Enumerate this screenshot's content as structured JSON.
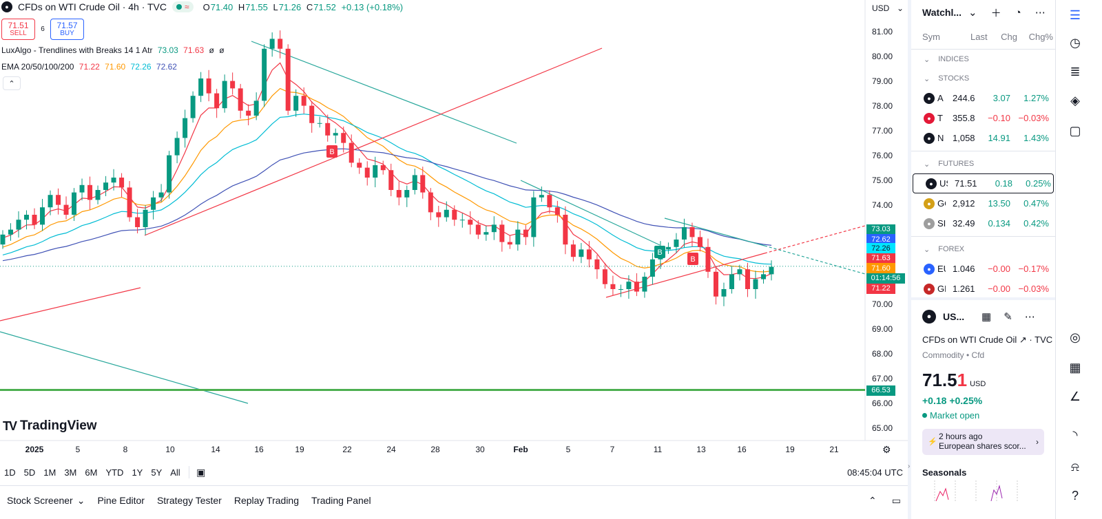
{
  "header": {
    "symbol_icon": "droplet-icon",
    "title": "CFDs on WTI Crude Oil · 4h · TVC",
    "status_wave": "≈",
    "ohlc": {
      "o_label": "O",
      "o": "71.40",
      "h_label": "H",
      "h": "71.55",
      "l_label": "L",
      "l": "71.26",
      "c_label": "C",
      "c": "71.52",
      "change": "+0.13 (+0.18%)"
    },
    "sell_price": "71.51",
    "sell_label": "SELL",
    "spread": "6",
    "buy_price": "71.57",
    "buy_label": "BUY"
  },
  "indicators": {
    "lux_name": "LuxAlgo - Trendlines with Breaks 14 1 Atr",
    "lux_v1": "73.03",
    "lux_v2": "71.63",
    "lux_v3": "ø",
    "lux_v4": "ø",
    "ema_name": "EMA 20/50/100/200",
    "ema_v1": "71.22",
    "ema_v2": "71.60",
    "ema_v3": "72.26",
    "ema_v4": "72.62",
    "collapse_icon": "chevron-up-icon"
  },
  "currency": "USD",
  "price_axis": [
    "81.00",
    "80.00",
    "79.00",
    "78.00",
    "77.00",
    "76.00",
    "75.00",
    "74.00",
    "70.00",
    "69.00",
    "68.00",
    "67.00",
    "66.00",
    "65.00"
  ],
  "price_tags": {
    "lux_upper": "73.03",
    "ema200": "72.62",
    "ema100": "72.26",
    "lux_lower": "71.63",
    "ema50": "71.60",
    "countdown": "01:14:56",
    "ema20": "71.22",
    "level": "66.53"
  },
  "time_axis": [
    "2025",
    "5",
    "8",
    "10",
    "14",
    "16",
    "19",
    "22",
    "24",
    "28",
    "30",
    "Feb",
    "5",
    "7",
    "11",
    "13",
    "16",
    "19",
    "21"
  ],
  "signal_labels": [
    "B",
    "B",
    "B"
  ],
  "logo_text": "TradingView",
  "range_buttons": [
    "1D",
    "5D",
    "1M",
    "3M",
    "6M",
    "YTD",
    "1Y",
    "5Y",
    "All"
  ],
  "clock": "08:45:04 UTC",
  "bottom_tabs": [
    "Stock Screener",
    "Pine Editor",
    "Strategy Tester",
    "Replay Trading",
    "Trading Panel"
  ],
  "watchlist": {
    "title": "Watchl...",
    "columns": [
      "Sym",
      "Last",
      "Chg",
      "Chg%"
    ],
    "sections": [
      "INDICES",
      "STOCKS",
      "FUTURES",
      "FOREX"
    ],
    "stocks": [
      {
        "sym": "A",
        "last": "244.6",
        "chg": "3.07",
        "pct": "1.27%",
        "icon": "apple-icon",
        "color": "#131722",
        "dir": "pos"
      },
      {
        "sym": "T",
        "last": "355.8",
        "chg": "−0.10",
        "pct": "−0.03%",
        "icon": "tesla-icon",
        "color": "#e31937",
        "dir": "neg"
      },
      {
        "sym": "N",
        "last": "1,058",
        "chg": "14.91",
        "pct": "1.43%",
        "icon": "netflix-icon",
        "color": "#131722",
        "dir": "pos"
      }
    ],
    "futures": [
      {
        "sym": "US",
        "last": "71.51",
        "chg": "0.18",
        "pct": "0.25%",
        "icon": "droplet-icon",
        "color": "#131722",
        "dir": "pos"
      },
      {
        "sym": "GC",
        "last": "2,912",
        "chg": "13.50",
        "pct": "0.47%",
        "icon": "gold-icon",
        "color": "#d4a017",
        "dir": "pos"
      },
      {
        "sym": "SIL",
        "last": "32.49",
        "chg": "0.134",
        "pct": "0.42%",
        "icon": "silver-icon",
        "color": "#9e9e9e",
        "dir": "pos"
      }
    ],
    "forex": [
      {
        "sym": "EU",
        "last": "1.046",
        "chg": "−0.00",
        "pct": "−0.17%",
        "icon": "eu-flag-icon",
        "color": "#2962ff",
        "dir": "neg"
      },
      {
        "sym": "GE",
        "last": "1.261",
        "chg": "−0.00",
        "pct": "−0.03%",
        "icon": "gb-flag-icon",
        "color": "#c62828",
        "dir": "neg"
      }
    ]
  },
  "details": {
    "sym": "US...",
    "name": "CFDs on WTI Crude Oil",
    "source": "TVC",
    "meta": "Commodity • Cfd",
    "price_main": "71.5",
    "price_last": "1",
    "currency": "USD",
    "change": "+0.18  +0.25%",
    "status": "Market open",
    "news_time": "2 hours ago",
    "news_text": "European shares scor...",
    "seasonals": "Seasonals"
  },
  "chart_data": {
    "type": "candlestick",
    "title": "CFDs on WTI Crude Oil · 4h · TVC",
    "ylim": [
      64.6,
      81.6
    ],
    "x_ticks": [
      "2025",
      "5",
      "8",
      "10",
      "14",
      "16",
      "19",
      "22",
      "24",
      "28",
      "30",
      "Feb",
      "5",
      "7",
      "11",
      "13",
      "16",
      "19",
      "21"
    ],
    "y_ticks": [
      65,
      66,
      67,
      68,
      69,
      70,
      71,
      72,
      73,
      74,
      75,
      76,
      77,
      78,
      79,
      80,
      81
    ],
    "horizontal_level": 66.53,
    "current_price": 71.52,
    "colors": {
      "up": "#089981",
      "down": "#f23645",
      "ema20": "#f23645",
      "ema50": "#ff9800",
      "ema100": "#00bcd4",
      "ema200": "#3f51b5",
      "level": "#4caf50"
    },
    "series_approx_close": [
      72.8,
      73.0,
      73.4,
      73.6,
      73.2,
      73.9,
      74.4,
      74.0,
      73.6,
      74.5,
      74.8,
      74.2,
      74.6,
      74.9,
      75.1,
      74.7,
      73.5,
      73.1,
      73.8,
      74.3,
      74.5,
      76.0,
      76.7,
      77.5,
      78.4,
      79.1,
      78.5,
      77.9,
      79.0,
      78.7,
      77.8,
      77.6,
      78.2,
      80.3,
      80.7,
      80.3,
      77.8,
      78.4,
      78.0,
      77.3,
      77.3,
      76.8,
      76.9,
      76.5,
      75.7,
      75.5,
      75.1,
      75.6,
      75.4,
      74.6,
      74.3,
      74.6,
      75.2,
      74.5,
      73.7,
      73.5,
      73.8,
      73.4,
      73.4,
      73.2,
      72.8,
      72.9,
      73.2,
      72.5,
      72.4,
      73.0,
      72.7,
      74.3,
      74.4,
      73.9,
      73.6,
      72.4,
      71.9,
      72.2,
      71.8,
      71.4,
      70.8,
      70.6,
      70.6,
      70.9,
      70.5,
      71.1,
      71.8,
      72.2,
      72.3,
      72.6,
      73.1,
      72.7,
      72.3,
      71.3,
      70.3,
      70.6,
      71.2,
      71.4,
      70.6,
      71.0,
      71.2,
      71.5
    ]
  }
}
